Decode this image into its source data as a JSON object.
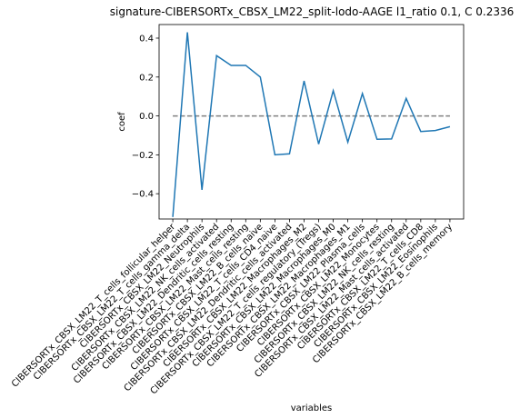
{
  "chart_data": {
    "type": "line",
    "title": "signature-CIBERSORTx_CBSX_LM22_split-lodo-AAGE l1_ratio 0.1, C 0.2336",
    "xlabel": "variables",
    "ylabel": "coef",
    "ylim": [
      -0.53,
      0.47
    ],
    "yticks": [
      -0.4,
      -0.2,
      0.0,
      0.2,
      0.4
    ],
    "ytick_labels": [
      "−0.4",
      "−0.2",
      "0.0",
      "0.2",
      "0.4"
    ],
    "grid": false,
    "categories": [
      "CIBERSORTx_CBSX_LM22_T_cells_follicular_helper",
      "CIBERSORTx_CBSX_LM22_T_cells_gamma_delta",
      "CIBERSORTx_CBSX_LM22_Neutrophils",
      "CIBERSORTx_CBSX_LM22_NK_cells_activated",
      "CIBERSORTx_CBSX_LM22_Dendritic_cells_resting",
      "CIBERSORTx_CBSX_LM22_Mast_cells_resting",
      "CIBERSORTx_CBSX_LM22_B_cells_naive",
      "CIBERSORTx_CBSX_LM22_T_cells_CD4_naive",
      "CIBERSORTx_CBSX_LM22_Dendritic_cells_activated",
      "CIBERSORTx_CBSX_LM22_Macrophages_M2",
      "CIBERSORTx_CBSX_LM22_T_cells_regulatory_(Tregs)",
      "CIBERSORTx_CBSX_LM22_Macrophages_M0",
      "CIBERSORTx_CBSX_LM22_Macrophages_M1",
      "CIBERSORTx_CBSX_LM22_Plasma_cells",
      "CIBERSORTx_CBSX_LM22_Monocytes",
      "CIBERSORTx_CBSX_LM22_NK_cells_resting",
      "CIBERSORTx_CBSX_LM22_Mast_cells_activated",
      "CIBERSORTx_CBSX_LM22_T_cells_CD8",
      "CIBERSORTx_CBSX_LM22_Eosinophils",
      "CIBERSORTx_CBSX_LM22_B_cells_memory"
    ],
    "series": [
      {
        "color": "#1f77b4",
        "style": "solid",
        "values": [
          -0.52,
          0.43,
          -0.38,
          0.31,
          0.26,
          0.26,
          0.2,
          -0.2,
          -0.195,
          0.18,
          -0.145,
          0.13,
          -0.135,
          0.115,
          -0.12,
          -0.118,
          0.09,
          -0.08,
          -0.075,
          -0.055
        ]
      },
      {
        "color": "#808080",
        "style": "dashed",
        "values": [
          0,
          0,
          0,
          0,
          0,
          0,
          0,
          0,
          0,
          0,
          0,
          0,
          0,
          0,
          0,
          0,
          0,
          0,
          0,
          0
        ]
      }
    ]
  }
}
